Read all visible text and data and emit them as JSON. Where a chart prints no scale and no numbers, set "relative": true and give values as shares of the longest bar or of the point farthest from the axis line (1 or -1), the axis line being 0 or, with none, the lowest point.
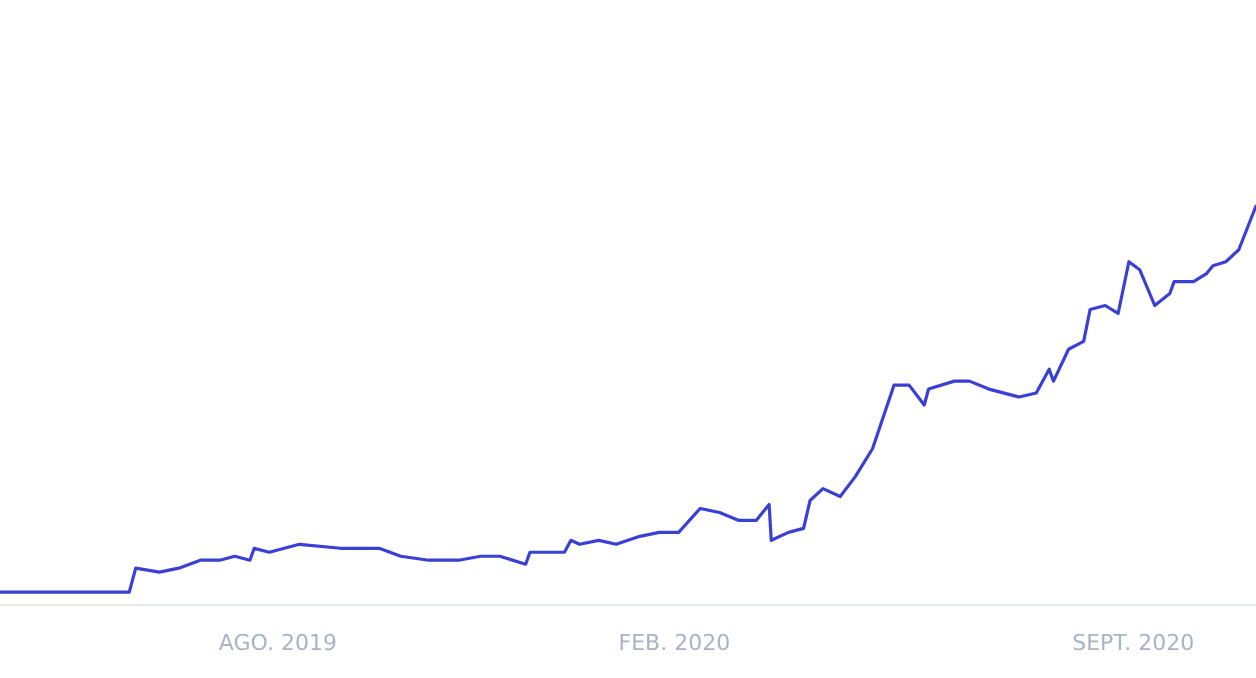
{
  "chart_data": {
    "type": "line",
    "relative": true,
    "color": "#3b40d4",
    "grid": false,
    "marker": "none",
    "line_style": "solid",
    "x": [
      "2019-03-25",
      "2019-05-24",
      "2019-05-27",
      "2019-06-07",
      "2019-06-16",
      "2019-06-26",
      "2019-07-05",
      "2019-07-12",
      "2019-07-19",
      "2019-07-21",
      "2019-07-28",
      "2019-08-11",
      "2019-08-30",
      "2019-09-17",
      "2019-09-27",
      "2019-10-10",
      "2019-10-24",
      "2019-11-03",
      "2019-11-12",
      "2019-11-24",
      "2019-11-26",
      "2019-12-12",
      "2019-12-15",
      "2019-12-19",
      "2019-12-28",
      "2020-01-05",
      "2020-01-16",
      "2020-01-25",
      "2020-02-03",
      "2020-02-13",
      "2020-02-22",
      "2020-03-02",
      "2020-03-10",
      "2020-03-16",
      "2020-03-17",
      "2020-03-25",
      "2020-04-01",
      "2020-04-04",
      "2020-04-10",
      "2020-04-18",
      "2020-04-25",
      "2020-05-03",
      "2020-05-13",
      "2020-05-20",
      "2020-05-27",
      "2020-05-29",
      "2020-06-10",
      "2020-06-17",
      "2020-06-26",
      "2020-07-10",
      "2020-07-18",
      "2020-07-24",
      "2020-07-26",
      "2020-08-02",
      "2020-08-09",
      "2020-08-12",
      "2020-08-19",
      "2020-08-25",
      "2020-08-30",
      "2020-09-04",
      "2020-09-11",
      "2020-09-18",
      "2020-09-20",
      "2020-09-29",
      "2020-10-05",
      "2020-10-08",
      "2020-10-14",
      "2020-10-20",
      "2020-10-28"
    ],
    "values": [
      0.03,
      0.03,
      0.09,
      0.08,
      0.09,
      0.11,
      0.11,
      0.12,
      0.11,
      0.14,
      0.13,
      0.15,
      0.14,
      0.14,
      0.12,
      0.11,
      0.11,
      0.12,
      0.12,
      0.1,
      0.13,
      0.13,
      0.16,
      0.15,
      0.16,
      0.15,
      0.17,
      0.18,
      0.18,
      0.24,
      0.23,
      0.21,
      0.21,
      0.25,
      0.16,
      0.18,
      0.19,
      0.26,
      0.29,
      0.27,
      0.32,
      0.39,
      0.55,
      0.55,
      0.5,
      0.54,
      0.56,
      0.56,
      0.54,
      0.52,
      0.53,
      0.59,
      0.56,
      0.64,
      0.66,
      0.74,
      0.75,
      0.73,
      0.86,
      0.84,
      0.75,
      0.78,
      0.81,
      0.81,
      0.83,
      0.85,
      0.86,
      0.89,
      1
    ],
    "xlim": [
      "2019-03-25",
      "2020-10-28"
    ],
    "xticks": [
      {
        "value": "2019-08-01",
        "label": "AGO. 2019"
      },
      {
        "value": "2020-02-01",
        "label": "FEB. 2020"
      },
      {
        "value": "2020-09-01",
        "label": "SEPT. 2020"
      }
    ]
  }
}
